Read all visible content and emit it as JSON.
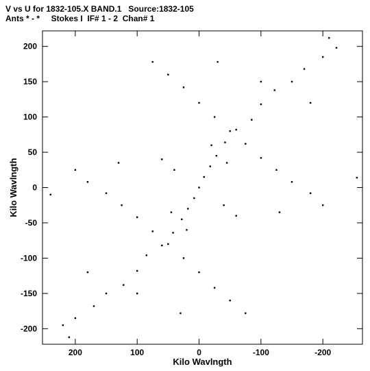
{
  "header": {
    "line1": "V vs U for 1832-105.X BAND.1   Source:1832-105",
    "line2": "Ants * - *     Stokes I  IF# 1 - 2  Chan# 1"
  },
  "chart_data": {
    "type": "scatter",
    "title": "V vs U for 1832-105.X BAND.1   Source:1832-105",
    "subtitle": "Ants * - *     Stokes I  IF# 1 - 2  Chan# 1",
    "xlabel": "Kilo Wavlngth",
    "ylabel": "Kilo Wavlngth",
    "xlim": [
      253,
      -264
    ],
    "ylim": [
      -222,
      222
    ],
    "xticks": [
      200,
      100,
      0,
      -100,
      -200
    ],
    "yticks": [
      -200,
      -150,
      -100,
      -50,
      0,
      50,
      100,
      150,
      200
    ],
    "xtick_labels": [
      "200",
      "100",
      "0",
      "-100",
      "-200"
    ],
    "ytick_labels": [
      "-200",
      "-150",
      "-100",
      "-50",
      "0",
      "50",
      "100",
      "150",
      "200"
    ],
    "grid": false,
    "legend": "none",
    "marker_color": "#000000",
    "series": [
      {
        "values": [
          [
            -210,
            212
          ],
          [
            -222,
            198
          ],
          [
            -200,
            185
          ],
          [
            -170,
            168
          ],
          [
            -150,
            150
          ],
          [
            -122,
            138
          ],
          [
            -100,
            118
          ],
          [
            -85,
            96
          ],
          [
            -60,
            82
          ],
          [
            -42,
            64
          ],
          [
            -28,
            45
          ],
          [
            -18,
            30
          ],
          [
            -8,
            15
          ],
          [
            0,
            0
          ],
          [
            8,
            -15
          ],
          [
            18,
            -30
          ],
          [
            28,
            -45
          ],
          [
            42,
            -64
          ],
          [
            60,
            -82
          ],
          [
            85,
            -96
          ],
          [
            100,
            -118
          ],
          [
            122,
            -138
          ],
          [
            150,
            -150
          ],
          [
            170,
            -168
          ],
          [
            200,
            -185
          ],
          [
            210,
            -212
          ],
          [
            220,
            -195
          ],
          [
            75,
            178
          ],
          [
            50,
            160
          ],
          [
            25,
            142
          ],
          [
            0,
            120
          ],
          [
            -25,
            100
          ],
          [
            -50,
            80
          ],
          [
            -75,
            62
          ],
          [
            -100,
            42
          ],
          [
            -125,
            25
          ],
          [
            -150,
            8
          ],
          [
            -180,
            -8
          ],
          [
            -200,
            -25
          ],
          [
            -75,
            -178
          ],
          [
            -50,
            -160
          ],
          [
            -25,
            -142
          ],
          [
            0,
            -120
          ],
          [
            25,
            -100
          ],
          [
            50,
            -80
          ],
          [
            75,
            -62
          ],
          [
            100,
            -42
          ],
          [
            125,
            -25
          ],
          [
            150,
            -8
          ],
          [
            180,
            8
          ],
          [
            200,
            25
          ],
          [
            240,
            -10
          ],
          [
            -255,
            14
          ],
          [
            -130,
            -35
          ],
          [
            130,
            35
          ],
          [
            -60,
            -40
          ],
          [
            60,
            40
          ],
          [
            -20,
            60
          ],
          [
            20,
            -60
          ],
          [
            -45,
            35
          ],
          [
            45,
            -35
          ],
          [
            -100,
            150
          ],
          [
            100,
            -150
          ],
          [
            -30,
            178
          ],
          [
            30,
            -178
          ],
          [
            -40,
            -25
          ],
          [
            40,
            25
          ],
          [
            -180,
            120
          ],
          [
            180,
            -120
          ]
        ]
      }
    ]
  }
}
